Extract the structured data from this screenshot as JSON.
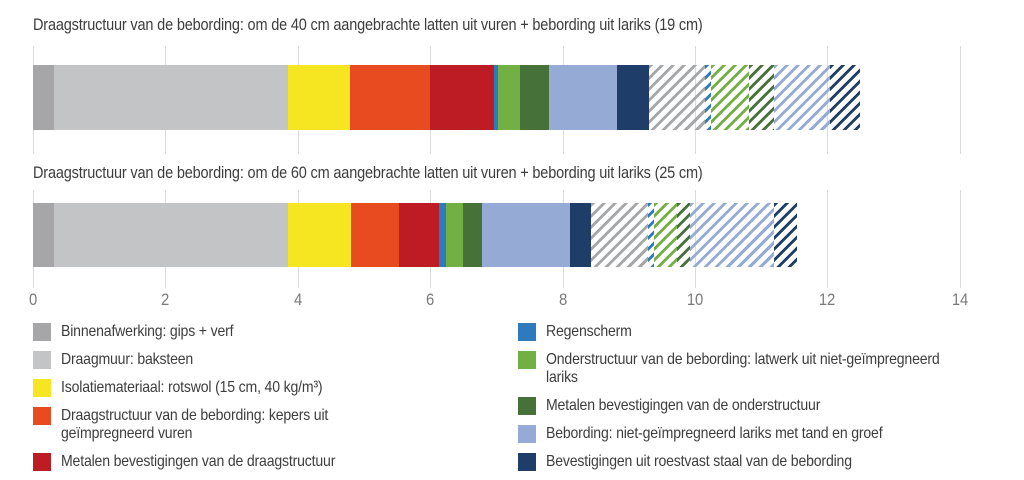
{
  "colors": {
    "binnenafwerking": "#a6a6a8",
    "draagmuur": "#c3c4c6",
    "isolatie": "#f6e521",
    "draagstructuur": "#e84b20",
    "metalen_draagstructuur": "#be1c24",
    "regenscherm": "#2e7abf",
    "onderstructuur": "#72b043",
    "metalen_onderstructuur": "#467139",
    "bebording": "#95abd6",
    "bevestigingen": "#1e3d69",
    "hatch_gray": "#a6a7a9",
    "gridline": "#dcdcdc",
    "axis_text": "#7a7a7a",
    "title_text": "#3d3d3d",
    "legend_text": "#3d3d3d"
  },
  "chart_data": {
    "type": "bar",
    "orientation": "horizontal-stacked",
    "x_axis": {
      "min": 0,
      "max": 14,
      "ticks": [
        0,
        2,
        4,
        6,
        8,
        10,
        12,
        14
      ],
      "gridlines": true
    },
    "bars": [
      {
        "title": "Draagstructuur van de bebording: om de 40 cm aangebrachte latten uit vuren + bebording uit lariks (19 cm)",
        "total": 12.5,
        "segments": [
          {
            "material": "binnenafwerking",
            "value": 0.32,
            "style": "solid"
          },
          {
            "material": "draagmuur",
            "value": 3.53,
            "style": "solid"
          },
          {
            "material": "isolatie",
            "value": 0.94,
            "style": "solid"
          },
          {
            "material": "draagstructuur",
            "value": 1.2,
            "style": "solid"
          },
          {
            "material": "metalen_draagstructuur",
            "value": 0.97,
            "style": "solid"
          },
          {
            "material": "regenscherm",
            "value": 0.07,
            "style": "solid"
          },
          {
            "material": "onderstructuur",
            "value": 0.33,
            "style": "solid"
          },
          {
            "material": "metalen_onderstructuur",
            "value": 0.44,
            "style": "solid"
          },
          {
            "material": "bebording",
            "value": 1.02,
            "style": "solid"
          },
          {
            "material": "bevestigingen",
            "value": 0.48,
            "style": "solid"
          },
          {
            "material": "draagmuur",
            "value": 0.85,
            "style": "hatched",
            "color_key": "hatch_gray"
          },
          {
            "material": "regenscherm",
            "value": 0.09,
            "style": "hatched"
          },
          {
            "material": "onderstructuur",
            "value": 0.58,
            "style": "hatched"
          },
          {
            "material": "metalen_onderstructuur",
            "value": 0.38,
            "style": "hatched"
          },
          {
            "material": "bebording",
            "value": 0.84,
            "style": "hatched"
          },
          {
            "material": "bevestigingen",
            "value": 0.46,
            "style": "hatched"
          }
        ]
      },
      {
        "title": "Draagstructuur van de bebording: om de 60 cm aangebrachte latten uit vuren + bebording uit lariks (25 cm)",
        "total": 11.55,
        "segments": [
          {
            "material": "binnenafwerking",
            "value": 0.32,
            "style": "solid"
          },
          {
            "material": "draagmuur",
            "value": 3.53,
            "style": "solid"
          },
          {
            "material": "isolatie",
            "value": 0.95,
            "style": "solid"
          },
          {
            "material": "draagstructuur",
            "value": 0.73,
            "style": "solid"
          },
          {
            "material": "metalen_draagstructuur",
            "value": 0.61,
            "style": "solid"
          },
          {
            "material": "regenscherm",
            "value": 0.1,
            "style": "solid"
          },
          {
            "material": "onderstructuur",
            "value": 0.26,
            "style": "solid"
          },
          {
            "material": "metalen_onderstructuur",
            "value": 0.28,
            "style": "solid"
          },
          {
            "material": "bebording",
            "value": 1.33,
            "style": "solid"
          },
          {
            "material": "bevestigingen",
            "value": 0.32,
            "style": "solid"
          },
          {
            "material": "draagmuur",
            "value": 0.86,
            "style": "hatched",
            "color_key": "hatch_gray"
          },
          {
            "material": "regenscherm",
            "value": 0.1,
            "style": "hatched"
          },
          {
            "material": "onderstructuur",
            "value": 0.34,
            "style": "hatched"
          },
          {
            "material": "metalen_onderstructuur",
            "value": 0.19,
            "style": "hatched"
          },
          {
            "material": "bebording",
            "value": 1.28,
            "style": "hatched"
          },
          {
            "material": "bevestigingen",
            "value": 0.35,
            "style": "hatched"
          }
        ]
      }
    ],
    "legend": {
      "columns": [
        {
          "items": [
            {
              "color_key": "binnenafwerking",
              "label": "Binnenafwerking: gips + verf"
            },
            {
              "color_key": "draagmuur",
              "label": "Draagmuur: baksteen"
            },
            {
              "color_key": "isolatie",
              "label": "Isolatiemateriaal: rotswol (15 cm, 40 kg/m³)"
            },
            {
              "color_key": "draagstructuur",
              "label": "Draagstructuur van de bebording: kepers uit geïmpregneerd vuren"
            },
            {
              "color_key": "metalen_draagstructuur",
              "label": "Metalen bevestigingen van de draagstructuur"
            }
          ]
        },
        {
          "items": [
            {
              "color_key": "regenscherm",
              "label": "Regenscherm"
            },
            {
              "color_key": "onderstructuur",
              "label": "Onderstructuur van de bebording: latwerk uit niet-geïmpregneerd lariks"
            },
            {
              "color_key": "metalen_onderstructuur",
              "label": "Metalen bevestigingen van de onderstructuur"
            },
            {
              "color_key": "bebording",
              "label": "Bebording: niet-geïmpregneerd lariks met tand en groef"
            },
            {
              "color_key": "bevestigingen",
              "label": "Bevestigingen uit roestvast staal van de bebording"
            }
          ]
        }
      ]
    }
  }
}
